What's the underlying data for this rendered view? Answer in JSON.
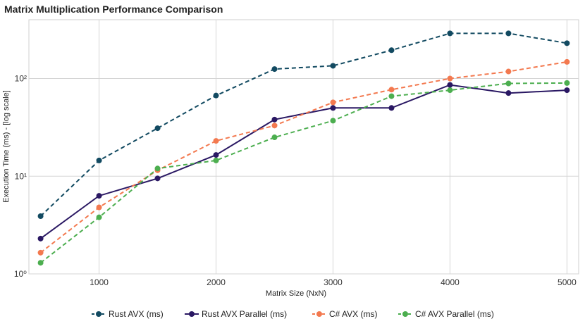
{
  "chart_data": {
    "type": "line",
    "title": "Matrix Multiplication Performance Comparison",
    "xlabel": "Matrix Size (NxN)",
    "ylabel": "Execution Time (ms) - [log scale]",
    "yscale": "log",
    "xlim": [
      400,
      5100
    ],
    "ylim": [
      1,
      400
    ],
    "x_ticks": [
      1000,
      2000,
      3000,
      4000,
      5000
    ],
    "y_ticks": [
      {
        "value": 1,
        "label": "10⁰"
      },
      {
        "value": 10,
        "label": "10¹"
      },
      {
        "value": 100,
        "label": "10²"
      }
    ],
    "grid": true,
    "legend_position": "bottom",
    "x": [
      500,
      1000,
      1500,
      2000,
      2500,
      3000,
      3500,
      4000,
      4500,
      5000
    ],
    "series": [
      {
        "name": "Rust AVX (ms)",
        "color": "#124a61",
        "dash": "dashed",
        "values": [
          3.9,
          14.5,
          31,
          67,
          125,
          135,
          195,
          290,
          290,
          230
        ]
      },
      {
        "name": "Rust AVX Parallel (ms)",
        "color": "#2a1863",
        "dash": "solid",
        "values": [
          2.3,
          6.3,
          9.5,
          16.5,
          38,
          50,
          50,
          86,
          71,
          76
        ]
      },
      {
        "name": "C# AVX (ms)",
        "color": "#f3794f",
        "dash": "dashed",
        "values": [
          1.65,
          4.8,
          11.5,
          23,
          33,
          57,
          77,
          100,
          118,
          148
        ]
      },
      {
        "name": "C# AVX Parallel (ms)",
        "color": "#4cae4f",
        "dash": "dashed",
        "values": [
          1.3,
          3.8,
          12,
          14.5,
          25,
          37,
          66,
          76,
          89,
          90
        ]
      }
    ]
  }
}
